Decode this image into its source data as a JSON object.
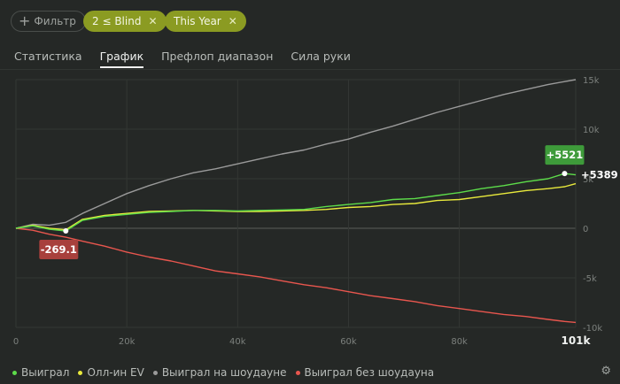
{
  "filters": {
    "add_label": "Фильтр",
    "chips": [
      {
        "label": "2 ≤ Blind"
      },
      {
        "label": "This Year"
      }
    ]
  },
  "tabs": [
    "Статистика",
    "График",
    "Префлоп диапазон",
    "Сила руки"
  ],
  "active_tab": "График",
  "chart_data": {
    "type": "line",
    "x_ticks": [
      "0",
      "20k",
      "40k",
      "60k",
      "80k"
    ],
    "x_end_label": "101k",
    "xlim": [
      0,
      101000
    ],
    "y_ticks": [
      "15k",
      "10k",
      "5k",
      "0",
      "-5k",
      "-10k"
    ],
    "ylim": [
      -10000,
      15000
    ],
    "grid": true,
    "series": [
      {
        "name": "Выиграл",
        "color": "#5ddc4a",
        "x": [
          0,
          3000,
          6000,
          9000,
          12000,
          16000,
          20000,
          24000,
          28000,
          32000,
          36000,
          40000,
          44000,
          48000,
          52000,
          56000,
          60000,
          64000,
          68000,
          72000,
          76000,
          80000,
          84000,
          88000,
          92000,
          96000,
          99000,
          101000
        ],
        "y": [
          0,
          250,
          -100,
          -269.1,
          800,
          1200,
          1400,
          1600,
          1700,
          1800,
          1800,
          1750,
          1800,
          1850,
          1900,
          2200,
          2400,
          2600,
          2900,
          3000,
          3300,
          3600,
          4000,
          4300,
          4700,
          5000,
          5521,
          5389
        ]
      },
      {
        "name": "Олл-ин EV",
        "color": "#e9ea3c",
        "x": [
          0,
          3000,
          6000,
          9000,
          12000,
          16000,
          20000,
          24000,
          28000,
          32000,
          36000,
          40000,
          44000,
          48000,
          52000,
          56000,
          60000,
          64000,
          68000,
          72000,
          76000,
          80000,
          84000,
          88000,
          92000,
          96000,
          99000,
          101000
        ],
        "y": [
          0,
          300,
          0,
          -150,
          900,
          1300,
          1500,
          1700,
          1750,
          1800,
          1750,
          1700,
          1700,
          1750,
          1800,
          1900,
          2100,
          2200,
          2400,
          2500,
          2800,
          2900,
          3200,
          3500,
          3800,
          4000,
          4200,
          4500
        ]
      },
      {
        "name": "Выиграл на шоудауне",
        "color": "#9a9a9a",
        "x": [
          0,
          3000,
          6000,
          9000,
          12000,
          16000,
          20000,
          24000,
          28000,
          32000,
          36000,
          40000,
          44000,
          48000,
          52000,
          56000,
          60000,
          64000,
          68000,
          72000,
          76000,
          80000,
          84000,
          88000,
          92000,
          96000,
          99000,
          101000
        ],
        "y": [
          0,
          400,
          300,
          600,
          1500,
          2500,
          3500,
          4300,
          5000,
          5600,
          6000,
          6500,
          7000,
          7500,
          7900,
          8500,
          9000,
          9700,
          10300,
          11000,
          11700,
          12300,
          12900,
          13500,
          14000,
          14500,
          14800,
          15000
        ]
      },
      {
        "name": "Выиграл без шоудауна",
        "color": "#e8564e",
        "x": [
          0,
          3000,
          6000,
          9000,
          12000,
          16000,
          20000,
          24000,
          28000,
          32000,
          36000,
          40000,
          44000,
          48000,
          52000,
          56000,
          60000,
          64000,
          68000,
          72000,
          76000,
          80000,
          84000,
          88000,
          92000,
          96000,
          99000,
          101000
        ],
        "y": [
          0,
          -200,
          -600,
          -900,
          -1300,
          -1800,
          -2400,
          -2900,
          -3300,
          -3800,
          -4300,
          -4600,
          -4900,
          -5300,
          -5700,
          -6000,
          -6400,
          -6800,
          -7100,
          -7400,
          -7800,
          -8100,
          -8400,
          -8700,
          -8900,
          -9200,
          -9400,
          -9500
        ]
      }
    ],
    "annotations": [
      {
        "text": "-269.1",
        "x": 9000,
        "y": -269.1,
        "color": "#a8403c",
        "placement": "below"
      },
      {
        "text": "+5521",
        "x": 99000,
        "y": 5521,
        "color": "#3e9b3a",
        "placement": "above"
      },
      {
        "text": "+5389",
        "x": 101000,
        "y": 5389,
        "color": "#ffffff",
        "placement": "right"
      }
    ]
  }
}
